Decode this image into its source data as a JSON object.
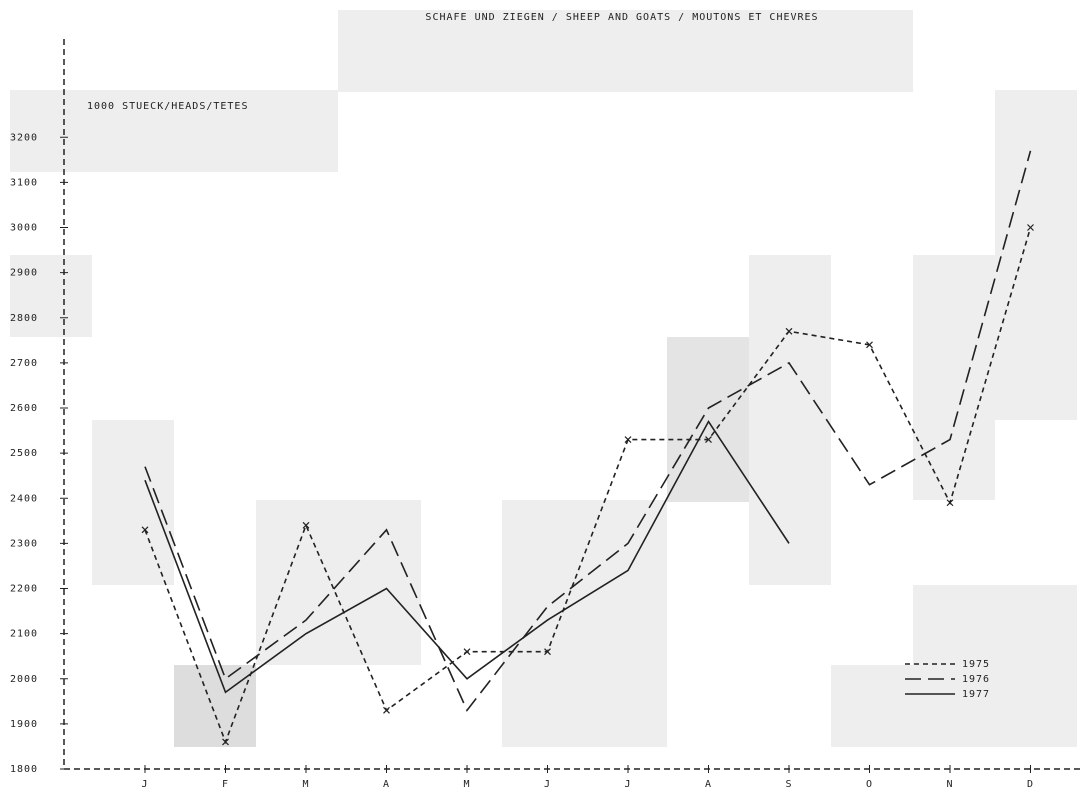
{
  "chart_data": {
    "type": "line",
    "title": "SCHAFE UND ZIEGEN / SHEEP AND GOATS / MOUTONS ET CHEVRES",
    "y_label": "1000 STUECK/HEADS/TETES",
    "categories": [
      "J",
      "F",
      "M",
      "A",
      "M",
      "J",
      "J",
      "A",
      "S",
      "O",
      "N",
      "D"
    ],
    "series": [
      {
        "name": "1975",
        "color": "#222222",
        "style": "short-dash",
        "marker": "x",
        "values": [
          2330,
          1860,
          2340,
          1930,
          2060,
          2060,
          2530,
          2530,
          2770,
          2740,
          2390,
          3000
        ]
      },
      {
        "name": "1976",
        "color": "#222222",
        "style": "long-dash",
        "values": [
          2470,
          2000,
          2130,
          2330,
          1930,
          2160,
          2300,
          2600,
          2700,
          2430,
          2530,
          3170
        ]
      },
      {
        "name": "1977",
        "color": "#222222",
        "style": "solid",
        "values": [
          2440,
          1970,
          2100,
          2200,
          2000,
          2130,
          2240,
          2570,
          2300,
          null,
          null,
          null
        ]
      }
    ],
    "ylim": [
      1800,
      3400
    ],
    "yticks": [
      1800,
      1900,
      2000,
      2100,
      2200,
      2300,
      2400,
      2500,
      2600,
      2700,
      2800,
      2900,
      3000,
      3100,
      3200
    ],
    "legend": "lower-right"
  }
}
